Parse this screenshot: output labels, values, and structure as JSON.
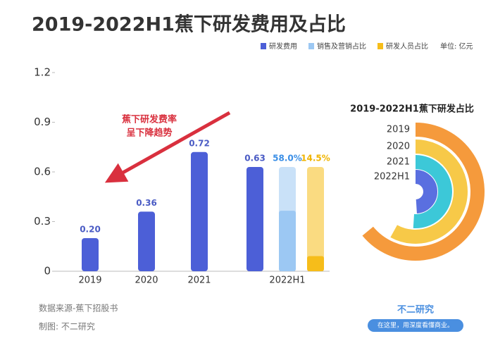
{
  "title": "2019-2022H1蕉下研发费用及占比",
  "unit_note": "单位: 亿元",
  "chart_data": [
    {
      "type": "bar",
      "categories": [
        "2019",
        "2020",
        "2021",
        "2022H1"
      ],
      "series": [
        {
          "name": "研发费用",
          "color": "#4c5fd7",
          "values": [
            0.2,
            0.36,
            0.72,
            0.63
          ],
          "value_labels": [
            "0.20",
            "0.36",
            "0.72",
            "0.63"
          ]
        },
        {
          "name": "销售及营销占比",
          "color": "#9cc8f3",
          "values": [
            null,
            null,
            null,
            58.0
          ],
          "value_labels": [
            null,
            null,
            null,
            "58.0%"
          ]
        },
        {
          "name": "研发人员占比",
          "color": "#f6bd1a",
          "values": [
            null,
            null,
            null,
            14.5
          ],
          "value_labels": [
            null,
            null,
            null,
            "14.5%"
          ]
        }
      ],
      "ylim": [
        0,
        1.2
      ],
      "yticks": [
        0,
        0.3,
        0.6,
        0.9,
        1.2
      ],
      "grid": false,
      "annotation": [
        "蕉下研发费率",
        "呈下降趋势"
      ]
    },
    {
      "type": "radial",
      "title": "2019-2022H1蕉下研发占比",
      "categories": [
        "2019",
        "2020",
        "2021",
        "2022H1"
      ],
      "values": [
        0.64,
        0.58,
        0.51,
        0.49
      ],
      "colors": [
        "#f59a3c",
        "#f7c948",
        "#3cc8d8",
        "#5a6fe0"
      ]
    }
  ],
  "source": "数据来源-蕉下招股书",
  "credit": "制图: 不二研究",
  "logo": {
    "name": "不二研究",
    "slogan": "在这里，用深度看懂商业。"
  }
}
